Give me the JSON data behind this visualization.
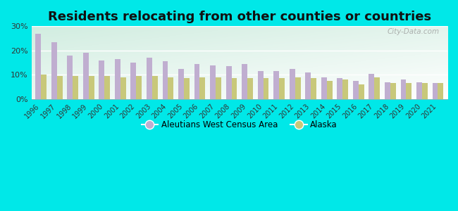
{
  "title": "Residents relocating from other counties or countries",
  "years": [
    1996,
    1997,
    1998,
    1999,
    2000,
    2001,
    2002,
    2003,
    2004,
    2005,
    2006,
    2007,
    2008,
    2009,
    2010,
    2011,
    2012,
    2013,
    2014,
    2015,
    2016,
    2017,
    2018,
    2019,
    2020,
    2021
  ],
  "aleutians": [
    27,
    23.5,
    18,
    19,
    16,
    16.5,
    15,
    17,
    15.5,
    12.5,
    14.5,
    14,
    13.5,
    14.5,
    11.5,
    11.5,
    12.5,
    11,
    9,
    8.5,
    7.5,
    10.5,
    7,
    8,
    7,
    6.5
  ],
  "alaska": [
    10,
    9.5,
    9.5,
    9.5,
    9.5,
    9,
    9.5,
    9.5,
    9,
    8.5,
    9,
    9,
    8.5,
    8.5,
    8.5,
    8.5,
    9,
    8.5,
    7.5,
    8,
    6,
    9,
    6.5,
    6.5,
    6.5,
    6.5
  ],
  "bar_color_aleutians": "#c0aed0",
  "bar_color_alaska": "#c8c87a",
  "background_outer": "#00e8e8",
  "ylim": [
    0,
    30
  ],
  "yticks": [
    0,
    10,
    20,
    30
  ],
  "ytick_labels": [
    "0%",
    "10%",
    "20%",
    "30%"
  ],
  "title_fontsize": 13,
  "legend_label_aleutians": "Aleutians West Census Area",
  "legend_label_alaska": "Alaska",
  "watermark": "City-Data.com"
}
